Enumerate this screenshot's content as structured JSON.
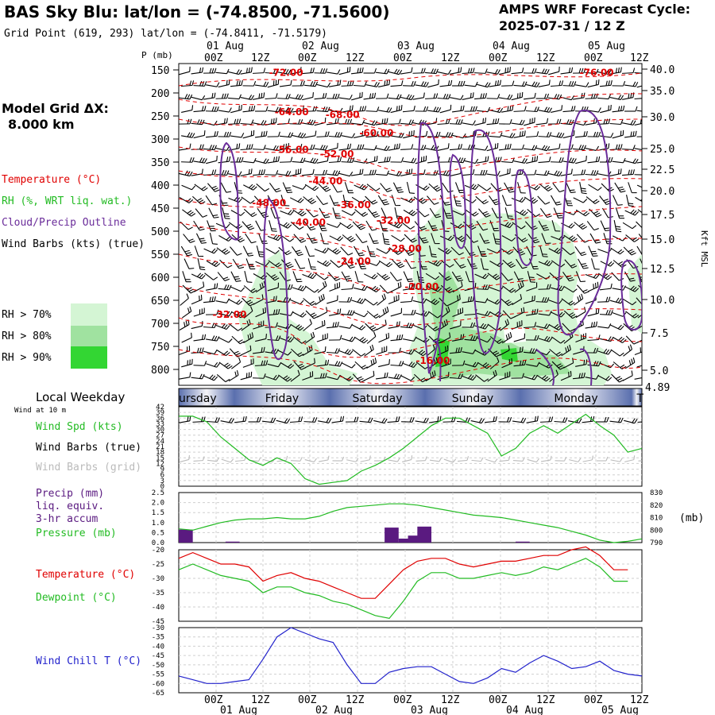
{
  "header": {
    "title": "BAS Sky Blu:  lat/lon = (-74.8500, -71.5600)",
    "grid_point": "Grid Point (619, 293) lat/lon = (-74.8411, -71.5179)",
    "cycle_label": "AMPS WRF Forecast Cycle:",
    "cycle_value": "2025-07-31 / 12  Z",
    "model_grid_label": "Model Grid ΔX:",
    "model_grid_value": "8.000 km"
  },
  "legend": {
    "temperature": "Temperature (°C)",
    "rh": "RH (%, WRT liq. wat.)",
    "cloud": "Cloud/Precip Outline",
    "wind": "Wind Barbs (kts) (true)",
    "rh70": "RH > 70%",
    "rh80": "RH > 80%",
    "rh90": "RH > 90%"
  },
  "colors": {
    "temperature": "#e00000",
    "rh": "#22bb22",
    "cloud": "#6a2c9a",
    "precip": "#5a1a80",
    "windchill": "#2222cc",
    "rh70": "#d4f5d4",
    "rh80": "#a0e2a0",
    "rh90": "#33d633"
  },
  "time_axis": {
    "top_dates": [
      "01 Aug",
      "02 Aug",
      "03 Aug",
      "04 Aug",
      "05 Aug"
    ],
    "top_hours": [
      "00Z",
      "12Z",
      "00Z",
      "12Z",
      "00Z",
      "12Z",
      "00Z",
      "12Z",
      "00Z",
      "12Z"
    ],
    "bottom_hours": [
      "00Z",
      "12Z",
      "00Z",
      "12Z",
      "00Z",
      "12Z",
      "00Z",
      "12Z",
      "00Z",
      "12Z"
    ],
    "bottom_dates": [
      "01 Aug",
      "02 Aug",
      "03 Aug",
      "04 Aug",
      "05 Aug"
    ]
  },
  "weekday_strip": {
    "title": "Local Weekday",
    "wind_note": "Wind at 10 m",
    "days": [
      "ursday",
      "Friday",
      "Saturday",
      "Sunday",
      "Monday",
      "T"
    ]
  },
  "chart_data": [
    {
      "type": "heatmap",
      "name": "cross-section",
      "ylabel": "P (mb)",
      "ylabel_right": "Kft MSL",
      "pressure_ticks": [
        "150",
        "200",
        "250",
        "300",
        "350",
        "400",
        "450",
        "500",
        "550",
        "600",
        "650",
        "700",
        "750",
        "800"
      ],
      "height_ticks": [
        "40.0",
        "35.0",
        "30.0",
        "25.0",
        "22.5",
        "20.0",
        "17.5",
        "15.0",
        "12.5",
        "10.0",
        "7.5",
        "5.0"
      ],
      "surface_height": "4.89",
      "isotherm_labels": [
        {
          "text": "-72.00",
          "t": 19,
          "p": 163
        },
        {
          "text": "-76.00",
          "t": 74,
          "p": 163
        },
        {
          "text": "-64.00",
          "t": 20,
          "p": 248
        },
        {
          "text": "-68.00",
          "t": 29,
          "p": 254
        },
        {
          "text": "-60.00",
          "t": 35,
          "p": 294
        },
        {
          "text": "-56.00",
          "t": 20,
          "p": 330
        },
        {
          "text": "-52.00",
          "t": 28,
          "p": 340
        },
        {
          "text": "-44.00",
          "t": 26,
          "p": 398
        },
        {
          "text": "-48.00",
          "t": 16,
          "p": 446
        },
        {
          "text": "-36.00",
          "t": 31,
          "p": 450
        },
        {
          "text": "-40.00",
          "t": 23,
          "p": 488
        },
        {
          "text": "-32.00",
          "t": 38,
          "p": 484
        },
        {
          "text": "-28.00",
          "t": 40,
          "p": 545
        },
        {
          "text": "-24.00",
          "t": 31,
          "p": 572
        },
        {
          "text": "-20.00",
          "t": 43,
          "p": 628
        },
        {
          "text": "-32.00",
          "t": 9,
          "p": 688
        },
        {
          "text": "-16.00",
          "t": 45,
          "p": 788
        }
      ],
      "legend": [
        "Temperature (°C)",
        "RH (%, WRT liq. wat.)",
        "Cloud/Precip Outline",
        "Wind Barbs (kts) (true)"
      ]
    },
    {
      "type": "line",
      "name": "wind speed",
      "series_label": "Wind Spd (kts)",
      "barbs_true_label": "Wind Barbs (true)",
      "barbs_grid_label": "Wind Barbs (grid)",
      "ylim": [
        0,
        42
      ],
      "yticks": [
        "0",
        "3",
        "6",
        "9",
        "12",
        "15",
        "18",
        "21",
        "24",
        "27",
        "30",
        "33",
        "36",
        "39",
        "42"
      ],
      "t": [
        0,
        3,
        6,
        9,
        12,
        15,
        18,
        21,
        24,
        27,
        30,
        33,
        36,
        39,
        42,
        45,
        48,
        51,
        54,
        57,
        60,
        63,
        66,
        69,
        72,
        75,
        78,
        81,
        84,
        87,
        90,
        93,
        96,
        99
      ],
      "values": [
        37,
        37,
        34,
        26,
        20,
        14,
        11,
        15,
        12,
        4,
        1,
        2,
        3,
        8,
        11,
        15,
        20,
        26,
        32,
        36,
        36,
        32,
        28,
        16,
        20,
        28,
        32,
        28,
        33,
        38,
        32,
        27,
        18,
        20
      ]
    },
    {
      "type": "line",
      "name": "pressure and precip",
      "precip_label": "Precip (mm)",
      "precip_sub1": "liq. equiv.",
      "precip_sub2": "3-hr accum",
      "pressure_label": "Pressure (mb)",
      "unit_right": "(mb)",
      "ylim_left": [
        0,
        2.5
      ],
      "ylim_right": [
        790,
        830
      ],
      "yticks_left": [
        "0.0",
        "0.5",
        "1.0",
        "1.5",
        "2.0",
        "2.5"
      ],
      "yticks_right": [
        "790",
        "800",
        "810",
        "820",
        "830"
      ],
      "pressure_t": [
        0,
        3,
        6,
        9,
        12,
        15,
        18,
        21,
        24,
        27,
        30,
        33,
        36,
        39,
        42,
        45,
        48,
        51,
        54,
        57,
        60,
        63,
        66,
        69,
        72,
        75,
        78,
        81,
        84,
        87,
        90,
        93,
        96,
        99
      ],
      "pressure": [
        801,
        800,
        803,
        806,
        808,
        809,
        809,
        810,
        809,
        809,
        811,
        815,
        818,
        819,
        820,
        821,
        821,
        820,
        818,
        816,
        814,
        812,
        811,
        810,
        808,
        806,
        804,
        802,
        799,
        796,
        792,
        790,
        791,
        793
      ],
      "precip": [
        {
          "t": 0,
          "v": 0.65
        },
        {
          "t": 10,
          "v": 0.05
        },
        {
          "t": 44,
          "v": 0.75
        },
        {
          "t": 47,
          "v": 0.2
        },
        {
          "t": 49,
          "v": 0.35
        },
        {
          "t": 51,
          "v": 0.8
        },
        {
          "t": 72,
          "v": 0.05
        }
      ]
    },
    {
      "type": "line",
      "name": "temperature and dewpoint",
      "series": [
        {
          "name": "Temperature (°C)",
          "values": [
            -23,
            -21,
            -23,
            -25,
            -25,
            -26,
            -31,
            -29,
            -28,
            -30,
            -31,
            -33,
            -35,
            -37,
            -37,
            -32,
            -27,
            -24,
            -23,
            -23,
            -25,
            -26,
            -25,
            -24,
            -24,
            -23,
            -22,
            -22,
            -20,
            -19,
            -22,
            -27,
            -27
          ]
        },
        {
          "name": "Dewpoint (°C)",
          "values": [
            -27,
            -25,
            -27,
            -29,
            -30,
            -31,
            -35,
            -33,
            -33,
            -35,
            -36,
            -38,
            -39,
            -41,
            -43,
            -44,
            -38,
            -31,
            -28,
            -28,
            -30,
            -30,
            -29,
            -28,
            -29,
            -28,
            -26,
            -27,
            -25,
            -23,
            -26,
            -31,
            -31
          ]
        }
      ],
      "t": [
        0,
        3,
        6,
        9,
        12,
        15,
        18,
        21,
        24,
        27,
        30,
        33,
        36,
        39,
        42,
        45,
        48,
        51,
        54,
        57,
        60,
        63,
        66,
        69,
        72,
        75,
        78,
        81,
        84,
        87,
        90,
        93,
        96
      ],
      "ylim": [
        -45,
        -20
      ],
      "yticks": [
        "-20",
        "-25",
        "-30",
        "-35",
        "-40",
        "-45"
      ]
    },
    {
      "type": "line",
      "name": "wind chill",
      "series": [
        {
          "name": "Wind Chill T (°C)",
          "values": [
            -56,
            -58,
            -60,
            -60,
            -59,
            -58,
            -47,
            -35,
            -30,
            -33,
            -36,
            -38,
            -50,
            -60,
            -60,
            -54,
            -52,
            -51,
            -51,
            -55,
            -59,
            -60,
            -57,
            -52,
            -54,
            -49,
            -45,
            -48,
            -52,
            -51,
            -48,
            -53,
            -55,
            -56
          ]
        }
      ],
      "t": [
        0,
        3,
        6,
        9,
        12,
        15,
        18,
        21,
        24,
        27,
        30,
        33,
        36,
        39,
        42,
        45,
        48,
        51,
        54,
        57,
        60,
        63,
        66,
        69,
        72,
        75,
        78,
        81,
        84,
        87,
        90,
        93,
        96,
        99
      ],
      "ylim": [
        -65,
        -30
      ],
      "yticks": [
        "-30",
        "-35",
        "-40",
        "-45",
        "-50",
        "-55",
        "-60",
        "-65"
      ]
    }
  ]
}
